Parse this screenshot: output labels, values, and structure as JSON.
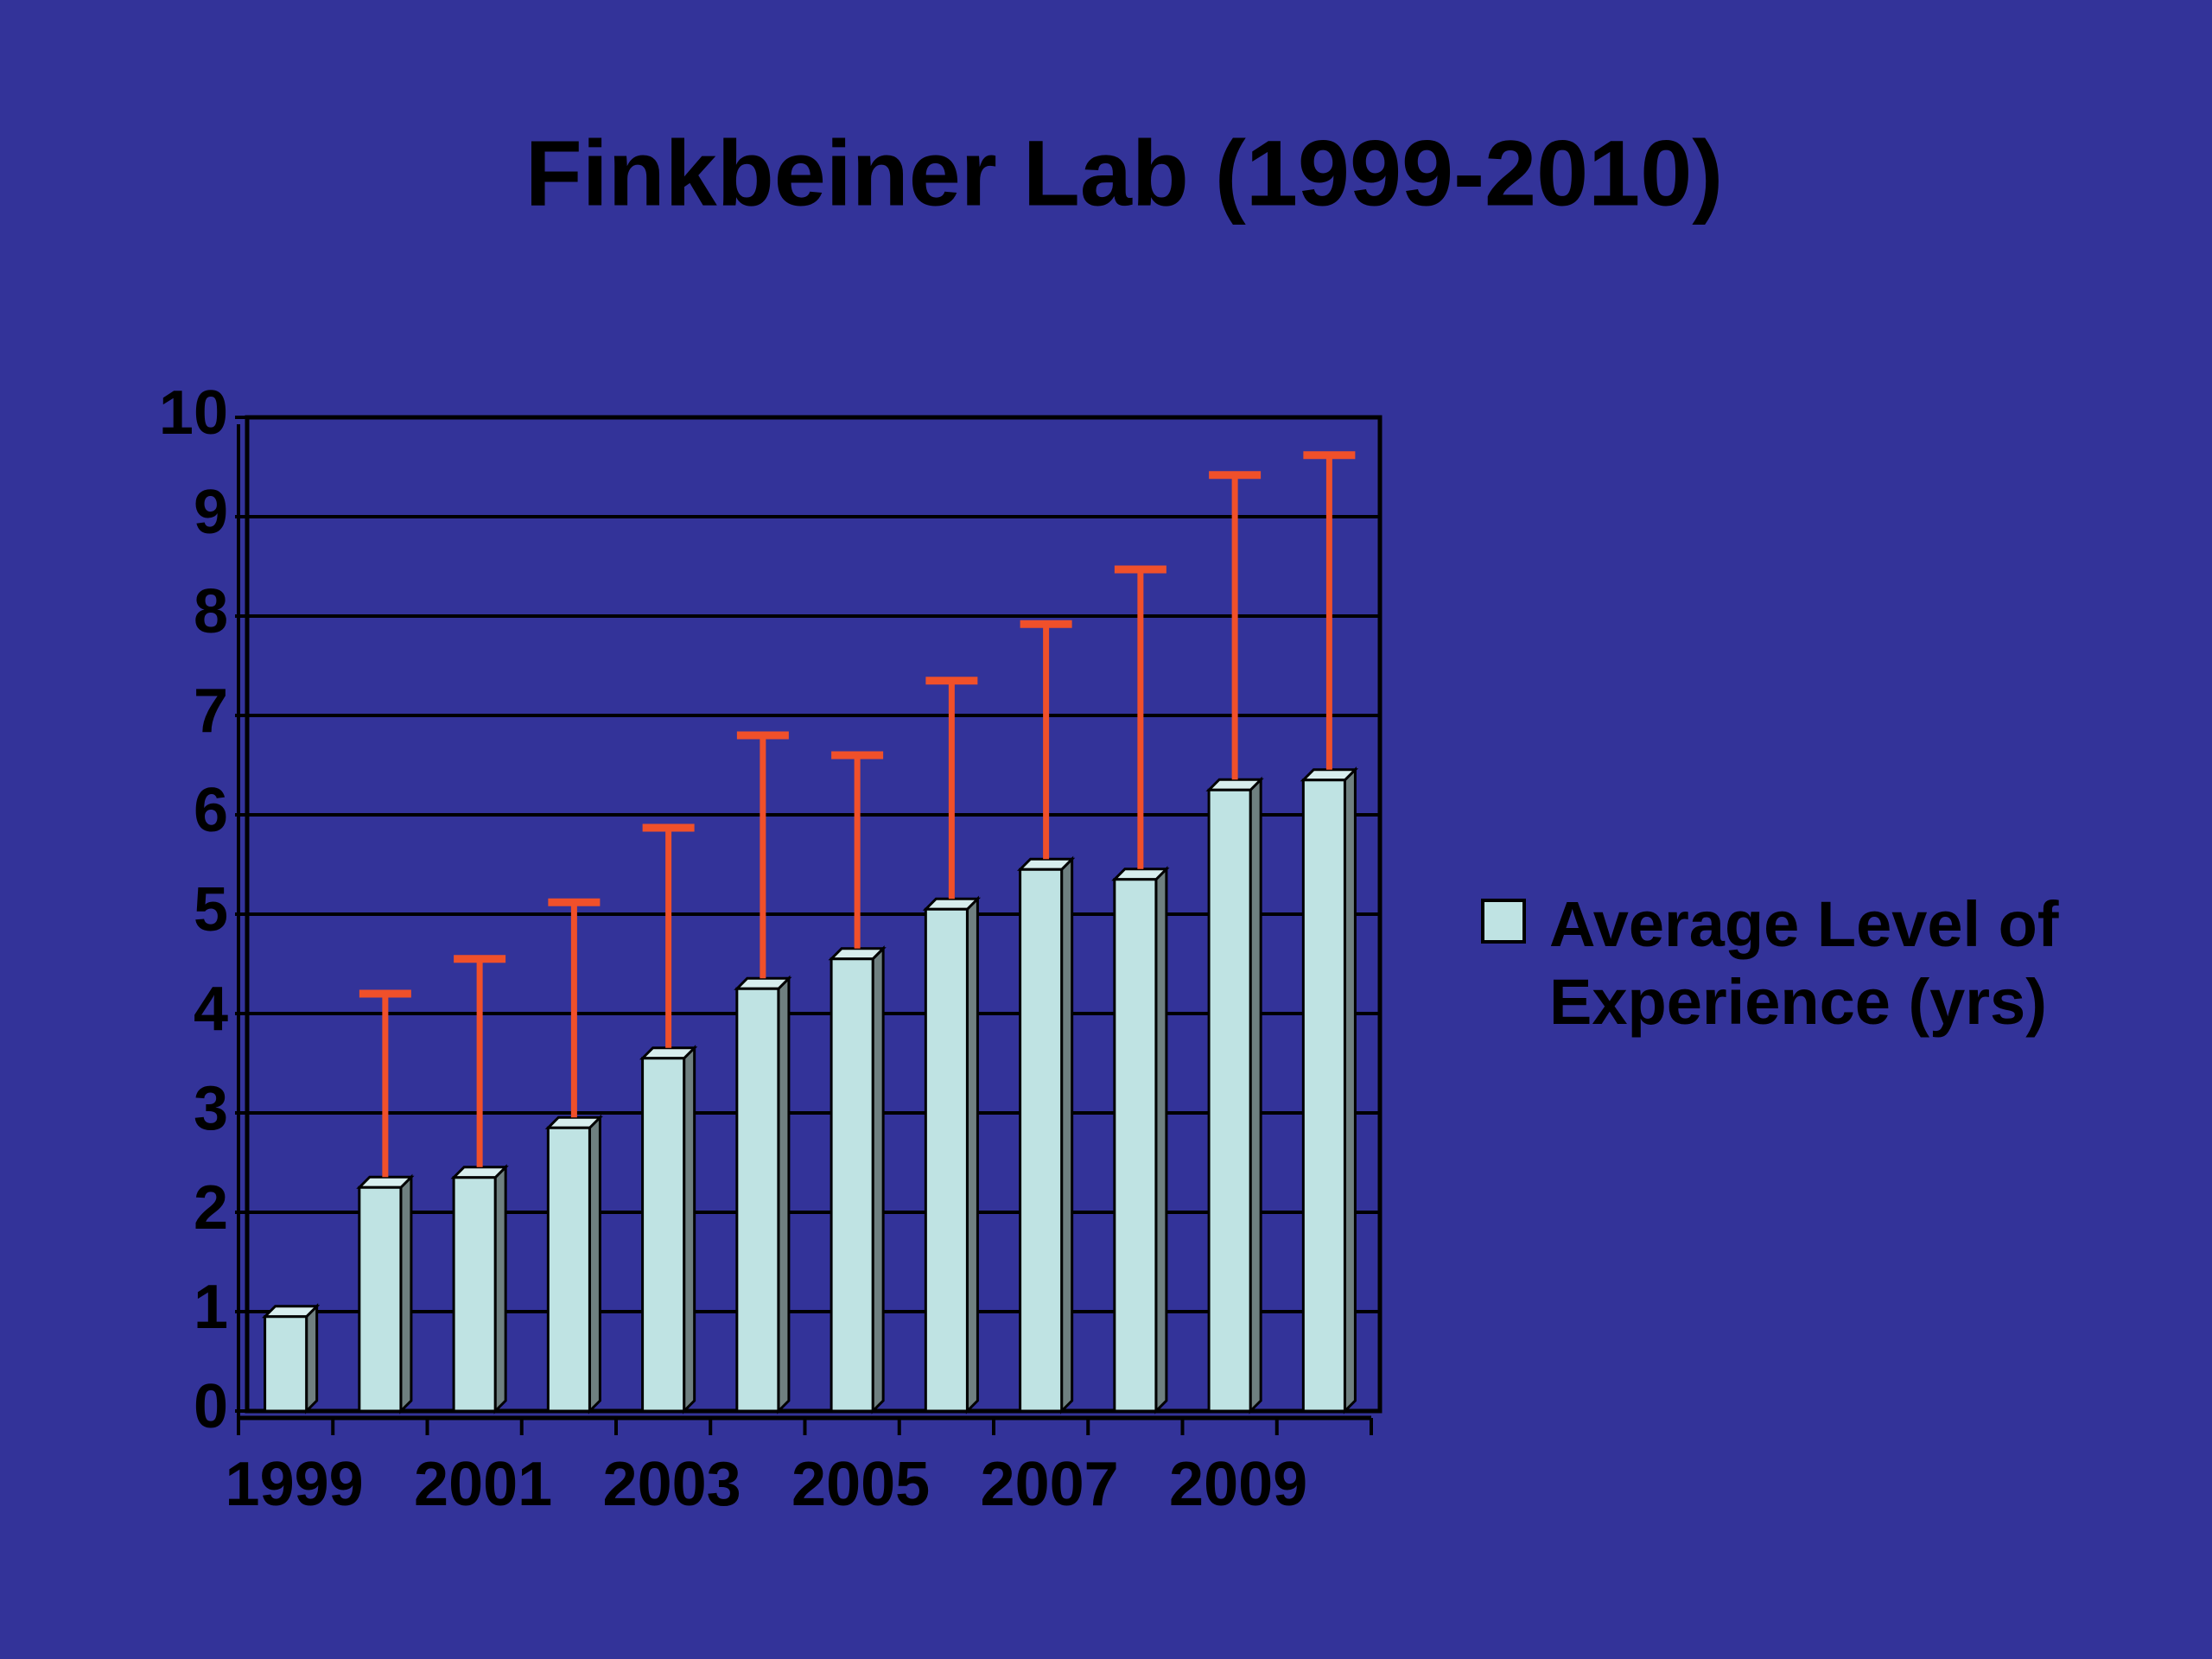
{
  "chart_data": {
    "type": "bar",
    "title": "Finkbeiner Lab (1999-2010)",
    "categories": [
      "1999",
      null,
      "2001",
      null,
      "2003",
      null,
      "2005",
      null,
      "2007",
      null,
      "2009",
      null
    ],
    "series": [
      {
        "name": "Average Level of Experience (yrs)",
        "color": "#bfe3e3",
        "values": [
          0.95,
          2.25,
          2.35,
          2.85,
          3.55,
          4.25,
          4.55,
          5.05,
          5.45,
          5.35,
          6.25,
          6.35
        ],
        "errors": [
          null,
          1.95,
          2.2,
          2.27,
          2.32,
          2.55,
          2.05,
          2.3,
          2.47,
          3.12,
          3.17,
          3.27
        ],
        "error_color": "#f0502a"
      }
    ],
    "ylim": [
      0,
      10
    ],
    "yticks": [
      0,
      1,
      2,
      3,
      4,
      5,
      6,
      7,
      8,
      9,
      10
    ],
    "grid": true,
    "legend": "right"
  }
}
